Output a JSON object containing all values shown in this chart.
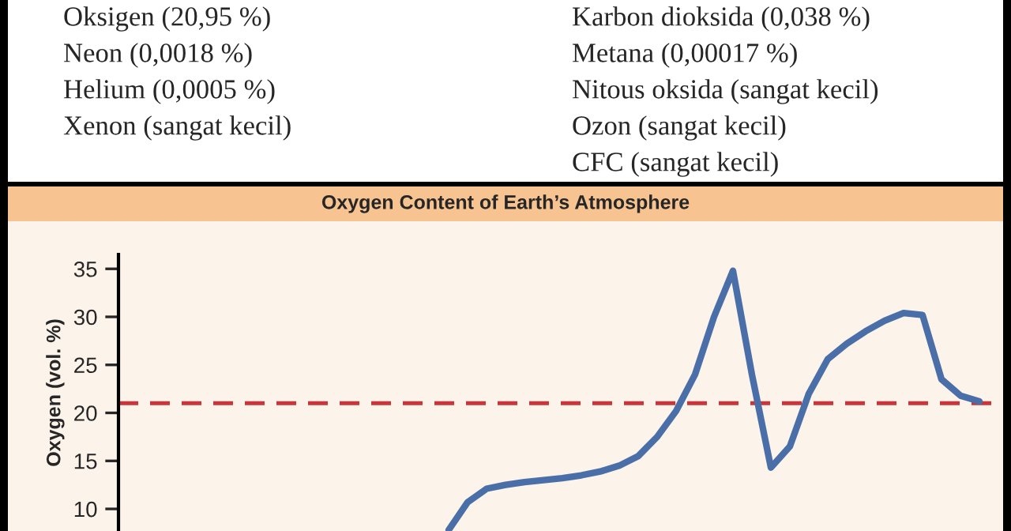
{
  "chart_data": {
    "type": "line",
    "title": "Oxygen Content of Earth’s Atmosphere",
    "ylabel": "Oxygen (vol. %)",
    "annotations": [
      "Oksigen (20,95 %)",
      "Neon (0,0018 %)",
      "Helium (0,0005 %)",
      "Xenon (sangat kecil)",
      "Karbon dioksida (0,038 %)",
      "Metana (0,00017 %)",
      "Nitous oksida (sangat kecil)",
      "Ozon (sangat kecil)",
      "CFC (sangat kecil)"
    ],
    "categories": [
      null,
      null,
      null,
      null,
      null,
      null,
      null,
      null,
      null,
      null,
      null,
      null,
      null,
      null,
      null,
      null,
      null,
      null,
      null,
      null,
      null,
      null,
      null,
      null,
      null,
      null,
      null,
      null,
      null,
      null,
      null,
      null,
      null,
      null,
      null,
      null,
      null,
      null,
      null,
      null,
      null,
      null,
      null,
      null,
      null,
      null
    ],
    "series": [
      {
        "color": "#4a6fa8",
        "values": [
          null,
          null,
          null,
          null,
          null,
          null,
          null,
          null,
          null,
          null,
          null,
          null,
          null,
          null,
          null,
          null,
          null,
          7.8,
          10.7,
          12.1,
          12.5,
          12.8,
          13.0,
          13.2,
          13.5,
          13.9,
          14.5,
          15.5,
          17.5,
          20.2,
          24,
          30,
          34.8,
          24,
          14.3,
          16.5,
          22,
          25.6,
          27.2,
          28.5,
          29.6,
          30.4,
          30.2,
          23.5,
          21.8,
          21.2
        ]
      }
    ],
    "ylim": [
      7.7,
      36.5
    ],
    "yticks": [
      10,
      15,
      20,
      25,
      30,
      35
    ],
    "ref_lines": [
      {
        "axis": "y",
        "value": 21,
        "color": "#c8353a",
        "line_style": "dashed"
      }
    ],
    "tick_labels": "y",
    "grid": false,
    "legend": false,
    "marker": "none",
    "line_style": "solid"
  }
}
